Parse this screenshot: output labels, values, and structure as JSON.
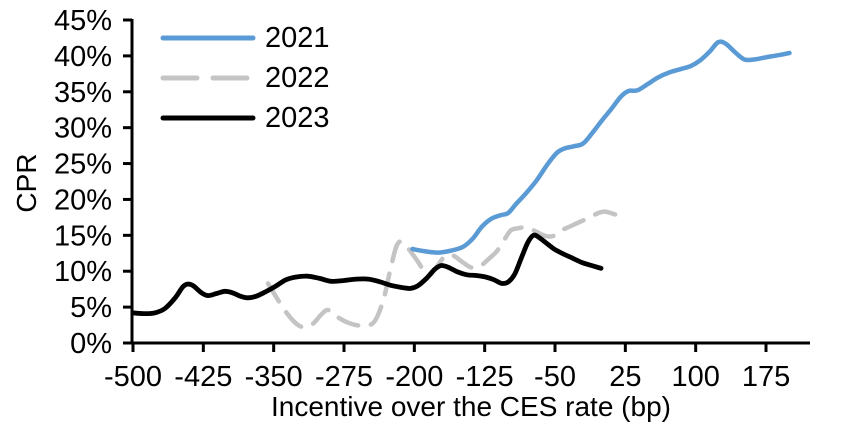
{
  "chart_data": {
    "type": "line",
    "title": "",
    "xlabel": "Incentive over the CES rate (bp)",
    "ylabel": "CPR",
    "xlim": [
      -500,
      200
    ],
    "ylim": [
      0,
      45
    ],
    "x_ticks": [
      -500,
      -425,
      -350,
      -275,
      -200,
      -125,
      -50,
      25,
      100,
      175
    ],
    "y_ticks": [
      0,
      5,
      10,
      15,
      20,
      25,
      30,
      35,
      40,
      45
    ],
    "y_tick_suffix": "%",
    "grid": false,
    "legend_position": "top-left-inside",
    "axis_color": "#000000",
    "series": [
      {
        "name": "2021",
        "color": "#5B9BD5",
        "style": "solid",
        "points": [
          [
            -202,
            13.1
          ],
          [
            -190,
            12.8
          ],
          [
            -175,
            12.6
          ],
          [
            -160,
            12.9
          ],
          [
            -148,
            13.4
          ],
          [
            -138,
            14.5
          ],
          [
            -128,
            16.2
          ],
          [
            -118,
            17.3
          ],
          [
            -108,
            17.8
          ],
          [
            -100,
            18.1
          ],
          [
            -92,
            19.3
          ],
          [
            -82,
            20.7
          ],
          [
            -70,
            22.6
          ],
          [
            -58,
            24.9
          ],
          [
            -48,
            26.5
          ],
          [
            -40,
            27.1
          ],
          [
            -30,
            27.4
          ],
          [
            -20,
            27.8
          ],
          [
            -10,
            29.3
          ],
          [
            0,
            31.0
          ],
          [
            10,
            32.6
          ],
          [
            20,
            34.3
          ],
          [
            28,
            35.1
          ],
          [
            38,
            35.2
          ],
          [
            48,
            36.0
          ],
          [
            60,
            37.0
          ],
          [
            72,
            37.7
          ],
          [
            85,
            38.2
          ],
          [
            95,
            38.6
          ],
          [
            105,
            39.4
          ],
          [
            115,
            40.6
          ],
          [
            124,
            41.9
          ],
          [
            132,
            41.7
          ],
          [
            142,
            40.5
          ],
          [
            152,
            39.5
          ],
          [
            162,
            39.5
          ],
          [
            175,
            39.8
          ],
          [
            188,
            40.1
          ],
          [
            200,
            40.4
          ]
        ]
      },
      {
        "name": "2022",
        "color": "#C4C4C4",
        "style": "dashed",
        "points": [
          [
            -356,
            8.3
          ],
          [
            -345,
            5.9
          ],
          [
            -335,
            4.0
          ],
          [
            -325,
            2.6
          ],
          [
            -317,
            2.2
          ],
          [
            -308,
            2.7
          ],
          [
            -299,
            4.0
          ],
          [
            -292,
            4.6
          ],
          [
            -283,
            3.7
          ],
          [
            -272,
            2.9
          ],
          [
            -262,
            2.5
          ],
          [
            -251,
            2.4
          ],
          [
            -242,
            3.1
          ],
          [
            -233,
            6.0
          ],
          [
            -226,
            10.0
          ],
          [
            -219,
            13.5
          ],
          [
            -213,
            14.1
          ],
          [
            -205,
            12.9
          ],
          [
            -196,
            11.3
          ],
          [
            -186,
            9.4
          ],
          [
            -178,
            10.3
          ],
          [
            -168,
            12.0
          ],
          [
            -159,
            12.2
          ],
          [
            -149,
            11.3
          ],
          [
            -139,
            10.5
          ],
          [
            -130,
            10.7
          ],
          [
            -120,
            11.8
          ],
          [
            -112,
            12.8
          ],
          [
            -104,
            14.4
          ],
          [
            -97,
            15.7
          ],
          [
            -89,
            16.0
          ],
          [
            -80,
            16.1
          ],
          [
            -70,
            15.5
          ],
          [
            -60,
            14.9
          ],
          [
            -52,
            14.9
          ],
          [
            -43,
            15.7
          ],
          [
            -33,
            16.3
          ],
          [
            -23,
            16.9
          ],
          [
            -13,
            17.5
          ],
          [
            -4,
            18.1
          ],
          [
            3,
            18.3
          ],
          [
            12,
            18.0
          ],
          [
            20,
            17.6
          ]
        ]
      },
      {
        "name": "2023",
        "color": "#000000",
        "style": "solid",
        "points": [
          [
            -500,
            4.2
          ],
          [
            -489,
            4.1
          ],
          [
            -477,
            4.2
          ],
          [
            -466,
            4.8
          ],
          [
            -455,
            6.3
          ],
          [
            -447,
            7.8
          ],
          [
            -442,
            8.2
          ],
          [
            -436,
            8.0
          ],
          [
            -427,
            7.0
          ],
          [
            -420,
            6.6
          ],
          [
            -411,
            6.9
          ],
          [
            -402,
            7.2
          ],
          [
            -394,
            7.0
          ],
          [
            -385,
            6.5
          ],
          [
            -378,
            6.3
          ],
          [
            -369,
            6.5
          ],
          [
            -359,
            7.1
          ],
          [
            -348,
            7.9
          ],
          [
            -337,
            8.8
          ],
          [
            -326,
            9.2
          ],
          [
            -314,
            9.3
          ],
          [
            -301,
            9.0
          ],
          [
            -289,
            8.6
          ],
          [
            -276,
            8.7
          ],
          [
            -262,
            8.9
          ],
          [
            -249,
            8.9
          ],
          [
            -236,
            8.5
          ],
          [
            -224,
            8.0
          ],
          [
            -212,
            7.7
          ],
          [
            -204,
            7.6
          ],
          [
            -196,
            8.0
          ],
          [
            -187,
            9.0
          ],
          [
            -178,
            10.3
          ],
          [
            -171,
            10.8
          ],
          [
            -163,
            10.5
          ],
          [
            -154,
            9.9
          ],
          [
            -144,
            9.5
          ],
          [
            -134,
            9.4
          ],
          [
            -124,
            9.2
          ],
          [
            -115,
            8.8
          ],
          [
            -107,
            8.3
          ],
          [
            -100,
            8.5
          ],
          [
            -93,
            9.6
          ],
          [
            -86,
            11.8
          ],
          [
            -79,
            14.0
          ],
          [
            -73,
            15.0
          ],
          [
            -68,
            14.8
          ],
          [
            -60,
            14.0
          ],
          [
            -51,
            13.1
          ],
          [
            -41,
            12.4
          ],
          [
            -31,
            11.8
          ],
          [
            -21,
            11.2
          ],
          [
            -11,
            10.8
          ],
          [
            -1,
            10.4
          ]
        ]
      }
    ]
  }
}
